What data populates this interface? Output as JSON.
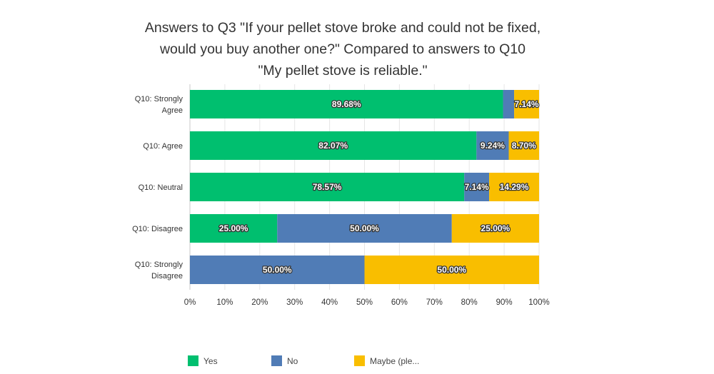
{
  "chart_data": {
    "type": "bar",
    "orientation": "horizontal",
    "stacked": true,
    "title_lines": [
      "Answers to Q3 \"If your pellet stove broke and could not be fixed,",
      "would you buy another one?\" Compared to answers to Q10",
      "\"My pellet stove is reliable.\""
    ],
    "categories": [
      [
        "Q10: Strongly",
        "Agree"
      ],
      [
        "Q10: Agree"
      ],
      [
        "Q10: Neutral"
      ],
      [
        "Q10: Disagree"
      ],
      [
        "Q10: Strongly",
        "Disagree"
      ]
    ],
    "series": [
      {
        "name": "Yes",
        "color": "#00bf6f",
        "values": [
          89.68,
          82.07,
          78.57,
          25.0,
          0.0
        ],
        "labels": [
          "89.68%",
          "82.07%",
          "78.57%",
          "25.00%",
          ""
        ]
      },
      {
        "name": "No",
        "color": "#507cb6",
        "values": [
          3.18,
          9.24,
          7.14,
          50.0,
          50.0
        ],
        "labels": [
          "",
          "9.24%",
          "7.14%",
          "50.00%",
          "50.00%"
        ]
      },
      {
        "name": "Maybe (ple...",
        "color": "#f9be00",
        "values": [
          7.14,
          8.7,
          14.29,
          25.0,
          50.0
        ],
        "labels": [
          "7.14%",
          "8.70%",
          "14.29%",
          "25.00%",
          "50.00%"
        ]
      }
    ],
    "xlim": [
      0,
      100
    ],
    "xticks": [
      "0%",
      "10%",
      "20%",
      "30%",
      "40%",
      "50%",
      "60%",
      "70%",
      "80%",
      "90%",
      "100%"
    ],
    "grid": true,
    "legend_position": "bottom"
  }
}
